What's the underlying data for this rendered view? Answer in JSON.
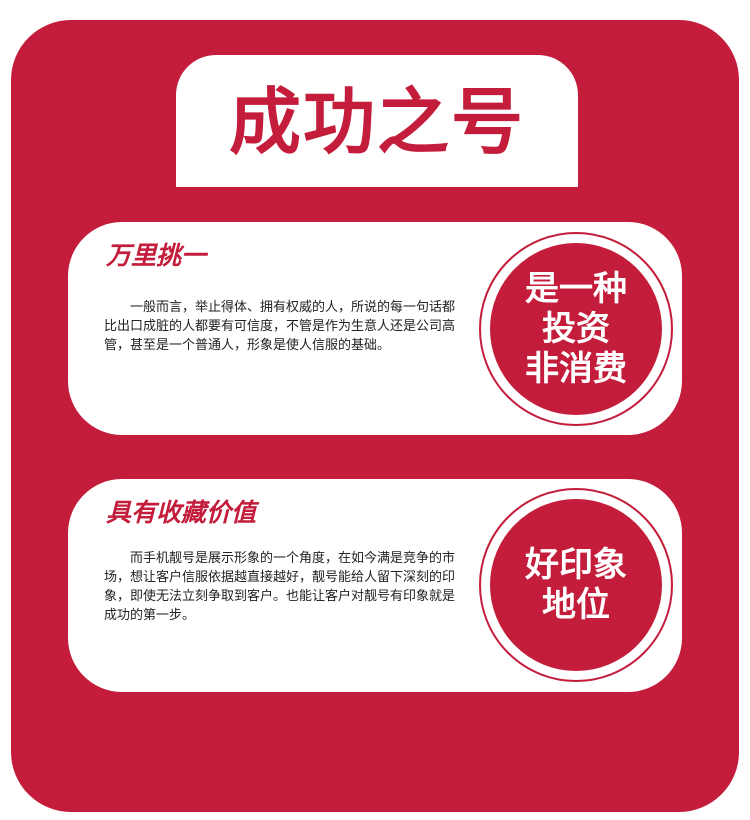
{
  "colors": {
    "accent": "#c41c3b",
    "background": "#ffffff",
    "text": "#222222"
  },
  "title": "成功之号",
  "cards": [
    {
      "heading": "万里挑一",
      "body": "　　一般而言，举止得体、拥有权威的人，所说的每一句话都比出口成脏的人都要有可信度，不管是作为生意人还是公司高管，甚至是一个普通人，形象是使人信服的基础。",
      "badge_lines": [
        "是一种",
        "投资",
        "非消费"
      ]
    },
    {
      "heading": "具有收藏价值",
      "body": "　　而手机靓号是展示形象的一个角度，在如今满是竞争的市场，想让客户信服依据越直接越好，靓号能给人留下深刻的印象，即使无法立刻争取到客户。也能让客户对靓号有印象就是成功的第一步。",
      "badge_lines": [
        "好印象",
        "地位"
      ]
    }
  ]
}
